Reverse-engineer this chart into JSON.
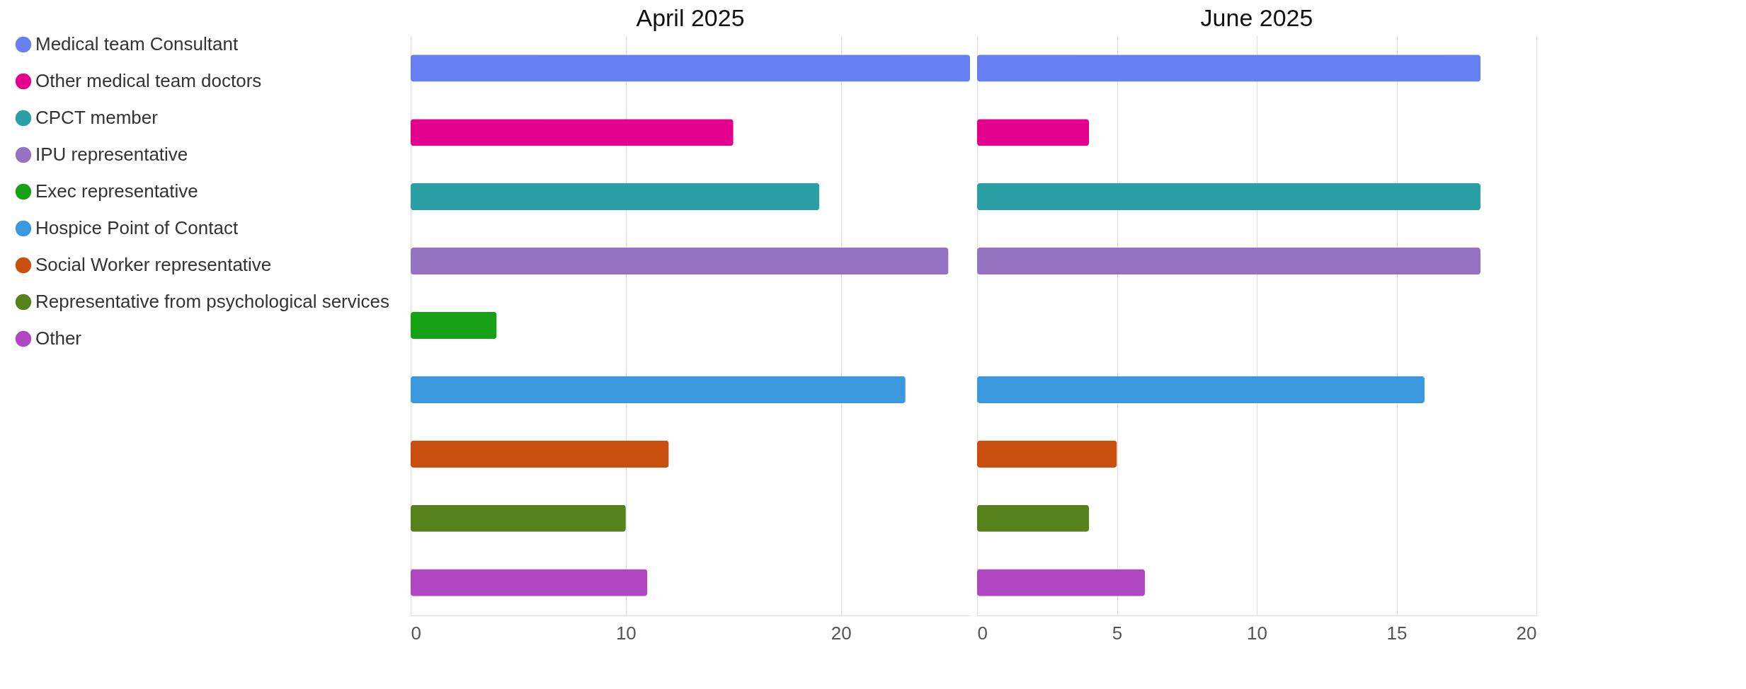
{
  "chart_data": [
    {
      "type": "bar",
      "orientation": "horizontal",
      "title": "April 2025",
      "categories": [
        null,
        null,
        null,
        null,
        null,
        null,
        null,
        null,
        null
      ],
      "series": [
        {
          "name": "Medical team Consultant",
          "color": "#6680f2",
          "values": [
            26,
            null,
            null,
            null,
            null,
            null,
            null,
            null,
            null
          ]
        },
        {
          "name": "Other medical team doctors",
          "color": "#e3008c",
          "values": [
            null,
            15,
            null,
            null,
            null,
            null,
            null,
            null,
            null
          ]
        },
        {
          "name": "CPCT member",
          "color": "#2aa0a4",
          "values": [
            null,
            null,
            19,
            null,
            null,
            null,
            null,
            null,
            null
          ]
        },
        {
          "name": "IPU representative",
          "color": "#9573c1",
          "values": [
            null,
            null,
            null,
            25,
            null,
            null,
            null,
            null,
            null
          ]
        },
        {
          "name": "Exec representative",
          "color": "#17a116",
          "values": [
            null,
            null,
            null,
            null,
            4,
            null,
            null,
            null,
            null
          ]
        },
        {
          "name": "Hospice Point of Contact",
          "color": "#3c98de",
          "values": [
            null,
            null,
            null,
            null,
            null,
            23,
            null,
            null,
            null
          ]
        },
        {
          "name": "Social Worker representative",
          "color": "#ca5010",
          "values": [
            null,
            null,
            null,
            null,
            null,
            null,
            12,
            null,
            null
          ]
        },
        {
          "name": "Representative from psychological services",
          "color": "#57811b",
          "values": [
            null,
            null,
            null,
            null,
            null,
            null,
            null,
            10,
            null
          ]
        },
        {
          "name": "Other",
          "color": "#b146c2",
          "values": [
            null,
            null,
            null,
            null,
            null,
            null,
            null,
            null,
            11
          ]
        }
      ],
      "xlim": [
        0,
        26
      ],
      "xticks": [
        0,
        10,
        20
      ],
      "grid": "x",
      "legend": "left",
      "tick_labels": "x"
    },
    {
      "type": "bar",
      "orientation": "horizontal",
      "title": "June 2025",
      "categories": [
        null,
        null,
        null,
        null,
        null,
        null,
        null,
        null,
        null
      ],
      "series": [
        {
          "name": "Medical team Consultant",
          "color": "#6680f2",
          "values": [
            18,
            null,
            null,
            null,
            null,
            null,
            null,
            null,
            null
          ]
        },
        {
          "name": "Other medical team doctors",
          "color": "#e3008c",
          "values": [
            null,
            4,
            null,
            null,
            null,
            null,
            null,
            null,
            null
          ]
        },
        {
          "name": "CPCT member",
          "color": "#2aa0a4",
          "values": [
            null,
            null,
            18,
            null,
            null,
            null,
            null,
            null,
            null
          ]
        },
        {
          "name": "IPU representative",
          "color": "#9573c1",
          "values": [
            null,
            null,
            null,
            18,
            null,
            null,
            null,
            null,
            null
          ]
        },
        {
          "name": "Exec representative",
          "color": "#17a116",
          "values": [
            null,
            null,
            null,
            null,
            0,
            null,
            null,
            null,
            null
          ]
        },
        {
          "name": "Hospice Point of Contact",
          "color": "#3c98de",
          "values": [
            null,
            null,
            null,
            null,
            null,
            16,
            null,
            null,
            null
          ]
        },
        {
          "name": "Social Worker representative",
          "color": "#ca5010",
          "values": [
            null,
            null,
            null,
            null,
            null,
            null,
            5,
            null,
            null
          ]
        },
        {
          "name": "Representative from psychological services",
          "color": "#57811b",
          "values": [
            null,
            null,
            null,
            null,
            null,
            null,
            null,
            4,
            null
          ]
        },
        {
          "name": "Other",
          "color": "#b146c2",
          "values": [
            null,
            null,
            null,
            null,
            null,
            null,
            null,
            null,
            6
          ]
        }
      ],
      "xlim": [
        0,
        20
      ],
      "xticks": [
        0,
        5,
        10,
        15,
        20
      ],
      "grid": "x",
      "legend": "left",
      "tick_labels": "x"
    }
  ]
}
